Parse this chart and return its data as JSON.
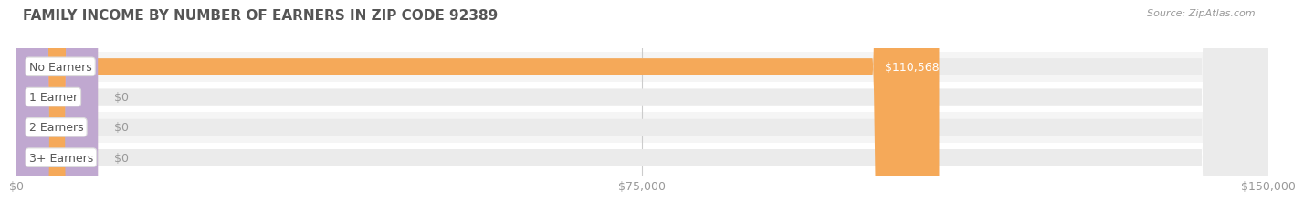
{
  "title": "FAMILY INCOME BY NUMBER OF EARNERS IN ZIP CODE 92389",
  "source": "Source: ZipAtlas.com",
  "categories": [
    "No Earners",
    "1 Earner",
    "2 Earners",
    "3+ Earners"
  ],
  "values": [
    110568,
    0,
    0,
    0
  ],
  "bar_colors": [
    "#f5a959",
    "#f0a0a8",
    "#a8b8e0",
    "#c0a8d0"
  ],
  "bar_bg_color": "#ebebeb",
  "label_bg_color": "#ffffff",
  "xlim": [
    0,
    150000
  ],
  "xticks": [
    0,
    75000,
    150000
  ],
  "xtick_labels": [
    "$0",
    "$75,000",
    "$150,000"
  ],
  "value_label_color": "#ffffff",
  "title_color": "#555555",
  "tick_color": "#999999",
  "source_color": "#999999",
  "fig_bg_color": "#ffffff",
  "bar_height": 0.55,
  "row_bg_colors": [
    "#f5f5f5",
    "#ffffff",
    "#f5f5f5",
    "#ffffff"
  ]
}
